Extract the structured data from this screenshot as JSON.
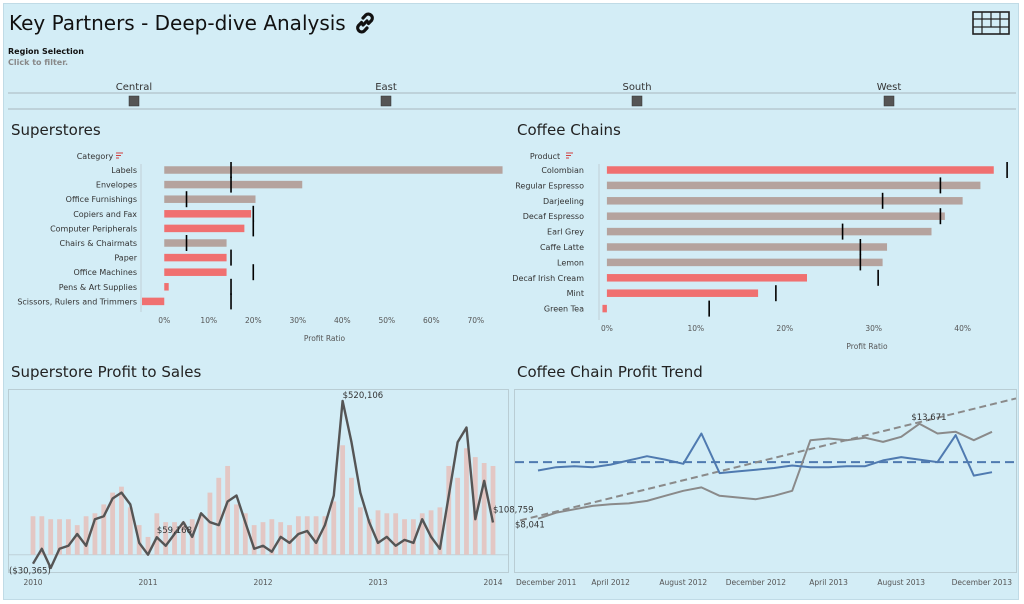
{
  "header": {
    "title": "Key Partners - Deep-dive Analysis",
    "link_icon": "link-icon",
    "logo_icon": "tableau-logo-icon"
  },
  "region_filter": {
    "label": "Region Selection",
    "hint": "Click to filter.",
    "regions": [
      "Central",
      "East",
      "South",
      "West"
    ]
  },
  "colors": {
    "background": "#d3edf6",
    "bar_gray": "#b5a39e",
    "bar_red": "#f07070",
    "line_dark": "#555555",
    "line_blue": "#4f7ab0",
    "line_gray": "#8a8a8a",
    "sales_bar": "#e3c7c4"
  },
  "chart_data": [
    {
      "id": "superstores",
      "type": "bar",
      "title": "Superstores",
      "category_label": "Category",
      "xlabel": "Profit Ratio",
      "xlim": [
        -0.05,
        0.77
      ],
      "ticks": [
        0,
        0.1,
        0.2,
        0.3,
        0.4,
        0.5,
        0.6,
        0.7
      ],
      "tick_labels": [
        "0%",
        "10%",
        "20%",
        "30%",
        "40%",
        "50%",
        "60%",
        "70%"
      ],
      "categories": [
        "Labels",
        "Envelopes",
        "Office Furnishings",
        "Copiers and Fax",
        "Computer Peripherals",
        "Chairs & Chairmats",
        "Paper",
        "Office Machines",
        "Pens & Art Supplies",
        "Scissors, Rulers and Trimmers"
      ],
      "values": [
        0.76,
        0.31,
        0.205,
        0.195,
        0.18,
        0.14,
        0.14,
        0.14,
        0.01,
        -0.05
      ],
      "reference": [
        0.15,
        0.15,
        0.05,
        0.2,
        0.2,
        0.05,
        0.15,
        0.2,
        0.15,
        0.15
      ],
      "highlight": [
        false,
        false,
        false,
        true,
        true,
        false,
        true,
        true,
        true,
        true
      ]
    },
    {
      "id": "coffee_chains",
      "type": "bar",
      "title": "Coffee Chains",
      "category_label": "Product",
      "xlabel": "Profit Ratio",
      "xlim": [
        -0.01,
        0.46
      ],
      "ticks": [
        0,
        0.1,
        0.2,
        0.3,
        0.4
      ],
      "tick_labels": [
        "0%",
        "10%",
        "20%",
        "30%",
        "40%"
      ],
      "categories": [
        "Colombian",
        "Regular Espresso",
        "Darjeeling",
        "Decaf Espresso",
        "Earl Grey",
        "Caffe Latte",
        "Lemon",
        "Decaf Irish Cream",
        "Mint",
        "Green Tea"
      ],
      "values": [
        0.435,
        0.42,
        0.4,
        0.38,
        0.365,
        0.315,
        0.31,
        0.225,
        0.17,
        -0.005
      ],
      "reference": [
        0.45,
        0.375,
        0.31,
        0.375,
        0.265,
        0.285,
        0.285,
        0.305,
        0.19,
        0.115
      ],
      "highlight": [
        true,
        false,
        false,
        false,
        false,
        false,
        false,
        true,
        true,
        true
      ]
    },
    {
      "id": "profit_to_sales",
      "type": "line",
      "title": "Superstore Profit to Sales",
      "x_ticks": [
        "2010",
        "2011",
        "2012",
        "2013",
        "2014"
      ],
      "ylim": [
        -45000,
        540000
      ],
      "profit": [
        -30365,
        20000,
        -45000,
        20000,
        30000,
        70000,
        30000,
        120000,
        130000,
        190000,
        210000,
        170000,
        40000,
        0,
        59168,
        30000,
        70000,
        110000,
        60000,
        140000,
        110000,
        100000,
        180000,
        200000,
        110000,
        20000,
        30000,
        10000,
        60000,
        40000,
        70000,
        80000,
        40000,
        100000,
        200000,
        520106,
        380000,
        210000,
        110000,
        40000,
        60000,
        30000,
        50000,
        40000,
        120000,
        60000,
        20000,
        200000,
        380000,
        430000,
        120000,
        250000,
        108759
      ],
      "sales": [
        130000,
        130000,
        120000,
        120000,
        120000,
        100000,
        130000,
        140000,
        170000,
        210000,
        230000,
        160000,
        100000,
        60000,
        140000,
        110000,
        110000,
        110000,
        120000,
        140000,
        210000,
        260000,
        300000,
        170000,
        140000,
        100000,
        110000,
        120000,
        110000,
        100000,
        130000,
        130000,
        130000,
        130000,
        180000,
        370000,
        260000,
        160000,
        120000,
        150000,
        140000,
        140000,
        120000,
        120000,
        140000,
        150000,
        160000,
        300000,
        260000,
        360000,
        330000,
        310000,
        300000
      ],
      "labels": [
        {
          "text": "($30,365)",
          "index": 0
        },
        {
          "text": "$59,168",
          "index": 14
        },
        {
          "text": "$520,106",
          "index": 35
        },
        {
          "text": "$108,759",
          "index": 52
        }
      ]
    },
    {
      "id": "coffee_trend",
      "type": "line",
      "title": "Coffee Chain Profit Trend",
      "x_ticks": [
        "December 2011",
        "April 2012",
        "August 2012",
        "December 2012",
        "April 2013",
        "August 2013",
        "December 2013"
      ],
      "x_tick_index": [
        0,
        4,
        8,
        12,
        16,
        20,
        24
      ],
      "ylim": [
        5000,
        15500
      ],
      "series_a": [
        10900,
        11100,
        11150,
        11100,
        11250,
        11500,
        11750,
        11550,
        11300,
        13100,
        10750,
        10850,
        10950,
        11050,
        11200,
        11100,
        11100,
        11150,
        11150,
        11500,
        11700,
        11550,
        11400,
        13000,
        10600,
        10800
      ],
      "series_b": [
        8041,
        8400,
        8600,
        8800,
        8900,
        8950,
        9100,
        9400,
        9700,
        9900,
        9400,
        9300,
        9200,
        9400,
        9700,
        12700,
        12800,
        12700,
        12850,
        12600,
        12900,
        13671,
        13100,
        13200,
        12700,
        13200
      ],
      "avg": 11400,
      "trend": [
        8000,
        15000
      ],
      "labels": [
        {
          "text": "$8,041",
          "series": "b",
          "index": 0
        },
        {
          "text": "$13,671",
          "series": "b",
          "index": 21
        }
      ]
    }
  ]
}
